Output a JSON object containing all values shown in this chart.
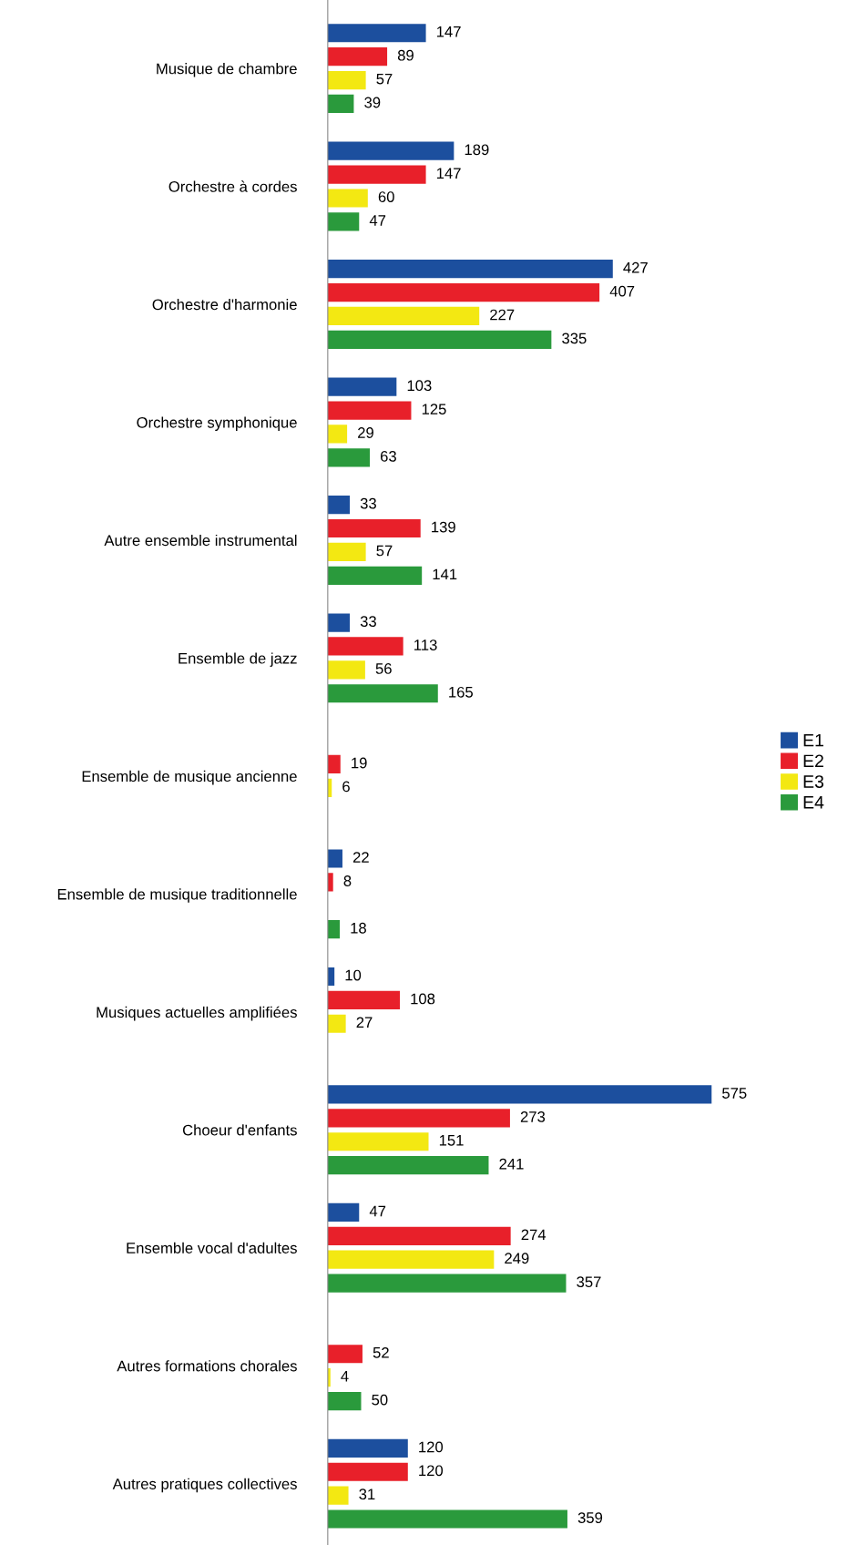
{
  "chart_data": {
    "type": "bar",
    "orientation": "horizontal",
    "data_labels": true,
    "legend": "right",
    "grid": false,
    "categories": [
      "Musique de chambre",
      "Orchestre à cordes",
      "Orchestre d'harmonie",
      "Orchestre symphonique",
      "Autre ensemble instrumental",
      "Ensemble de jazz",
      "Ensemble de musique ancienne",
      "Ensemble de musique traditionnelle",
      "Musiques actuelles amplifiées",
      "Choeur d'enfants",
      "Ensemble vocal d'adultes",
      "Autres formations chorales",
      "Autres pratiques collectives"
    ],
    "series": [
      {
        "name": "E1",
        "color": "#1c4f9e",
        "values": [
          147,
          189,
          427,
          103,
          33,
          33,
          null,
          22,
          10,
          575,
          47,
          null,
          120
        ]
      },
      {
        "name": "E2",
        "color": "#e8202a",
        "values": [
          89,
          147,
          407,
          125,
          139,
          113,
          19,
          8,
          108,
          273,
          274,
          52,
          120
        ]
      },
      {
        "name": "E3",
        "color": "#f3e812",
        "values": [
          57,
          60,
          227,
          29,
          57,
          56,
          6,
          null,
          27,
          151,
          249,
          4,
          31
        ]
      },
      {
        "name": "E4",
        "color": "#2a9a3c",
        "values": [
          39,
          47,
          335,
          63,
          141,
          165,
          null,
          18,
          null,
          241,
          357,
          50,
          359
        ]
      }
    ]
  }
}
